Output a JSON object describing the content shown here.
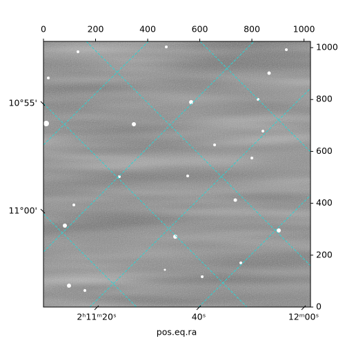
{
  "chart_data": {
    "type": "image",
    "xlabel": "pos.eq.ra",
    "xlim": [
      0,
      1025
    ],
    "xticks": [
      0,
      200,
      400,
      600,
      800,
      1000
    ],
    "ylim": [
      0,
      1024
    ],
    "yticks": [
      0,
      200,
      400,
      600,
      800,
      1000
    ],
    "ra_labels": [
      "2ʰ11ᵐ20ˢ",
      "40ˢ",
      "12ᵐ00ˢ"
    ],
    "dec_labels": [
      "10°55'",
      "11°00'"
    ]
  }
}
